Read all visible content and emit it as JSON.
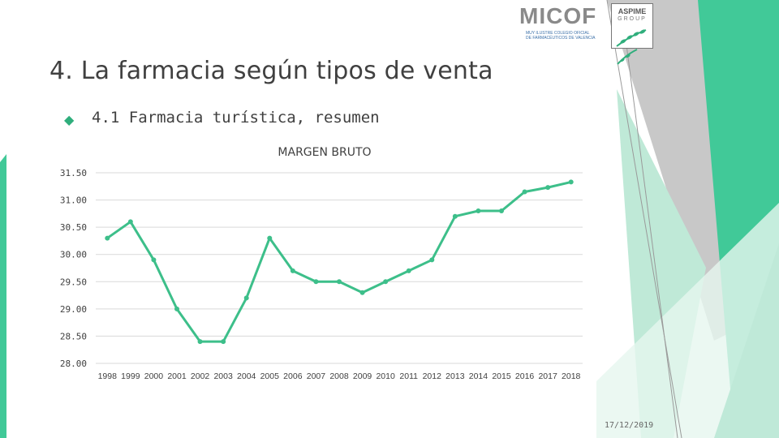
{
  "slide": {
    "title": "4. La farmacia según tipos de venta",
    "bullet_text": "4.1 Farmacia turística, resumen",
    "date": "17/12/2019"
  },
  "logos": {
    "micof": "MICOF",
    "micof_sub_1": "MUY ILUSTRE COLEGIO OFICIAL",
    "micof_sub_2": "DE FARMACÉUTICOS DE VALENCIA",
    "aspime": "ASPIME",
    "group": "GROUP"
  },
  "colors": {
    "accent": "#2fae7c",
    "line": "#3dbf8a",
    "grid": "#d9d9d9",
    "deco_dark": "#27b37f",
    "deco_light": "#a8e3cb",
    "deco_gray": "#bfbfbf"
  },
  "chart_data": {
    "type": "line",
    "title": "MARGEN BRUTO",
    "categories": [
      "1998",
      "1999",
      "2000",
      "2001",
      "2002",
      "2003",
      "2004",
      "2005",
      "2006",
      "2007",
      "2008",
      "2009",
      "2010",
      "2011",
      "2012",
      "2013",
      "2014",
      "2015",
      "2016",
      "2017",
      "2018"
    ],
    "series": [
      {
        "values": [
          30.3,
          30.6,
          29.9,
          29.0,
          28.4,
          28.4,
          29.2,
          30.3,
          29.7,
          29.5,
          29.5,
          29.3,
          29.5,
          29.7,
          29.9,
          30.7,
          30.8,
          30.8,
          31.15,
          31.23,
          31.33
        ]
      }
    ],
    "ylim": [
      28.0,
      31.5
    ],
    "yticks": [
      "31.50",
      "31.00",
      "30.50",
      "30.00",
      "29.50",
      "29.00",
      "28.50",
      "28.00"
    ],
    "grid": true,
    "legend": "none"
  }
}
